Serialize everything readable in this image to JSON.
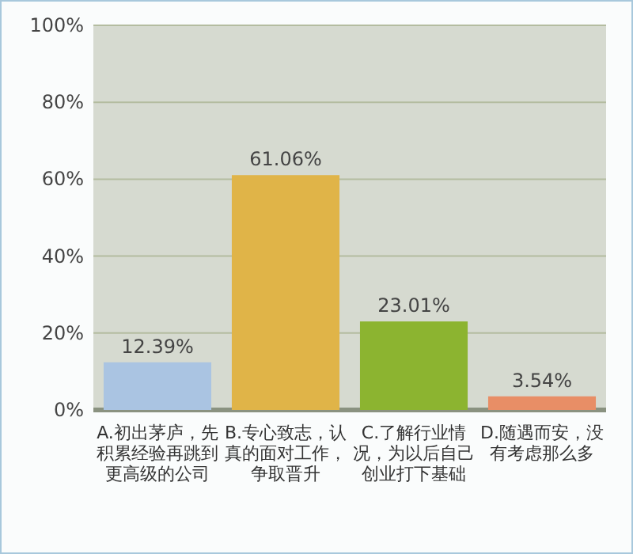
{
  "chart_data": {
    "type": "bar",
    "categories": [
      "A.初出茅庐，先积累经验再跳到更高级的公司",
      "B.专心致志，认真的面对工作，争取晋升",
      "C.了解行业情况，为以后自己创业打下基础",
      "D.随遇而安，没有考虑那么多"
    ],
    "values": [
      12.39,
      61.06,
      23.01,
      3.54
    ],
    "colors": [
      "#aac4e2",
      "#e0b448",
      "#8cb430",
      "#e88e66"
    ],
    "value_labels": [
      "12.39%",
      "61.06%",
      "23.01%",
      "3.54%"
    ],
    "ylim": [
      0,
      100
    ],
    "yticks": [
      {
        "value": 0,
        "label": "0%"
      },
      {
        "value": 20,
        "label": "20%"
      },
      {
        "value": 40,
        "label": "40%"
      },
      {
        "value": 60,
        "label": "60%"
      },
      {
        "value": 80,
        "label": "80%"
      },
      {
        "value": 100,
        "label": "100%"
      }
    ],
    "grid": "y"
  }
}
